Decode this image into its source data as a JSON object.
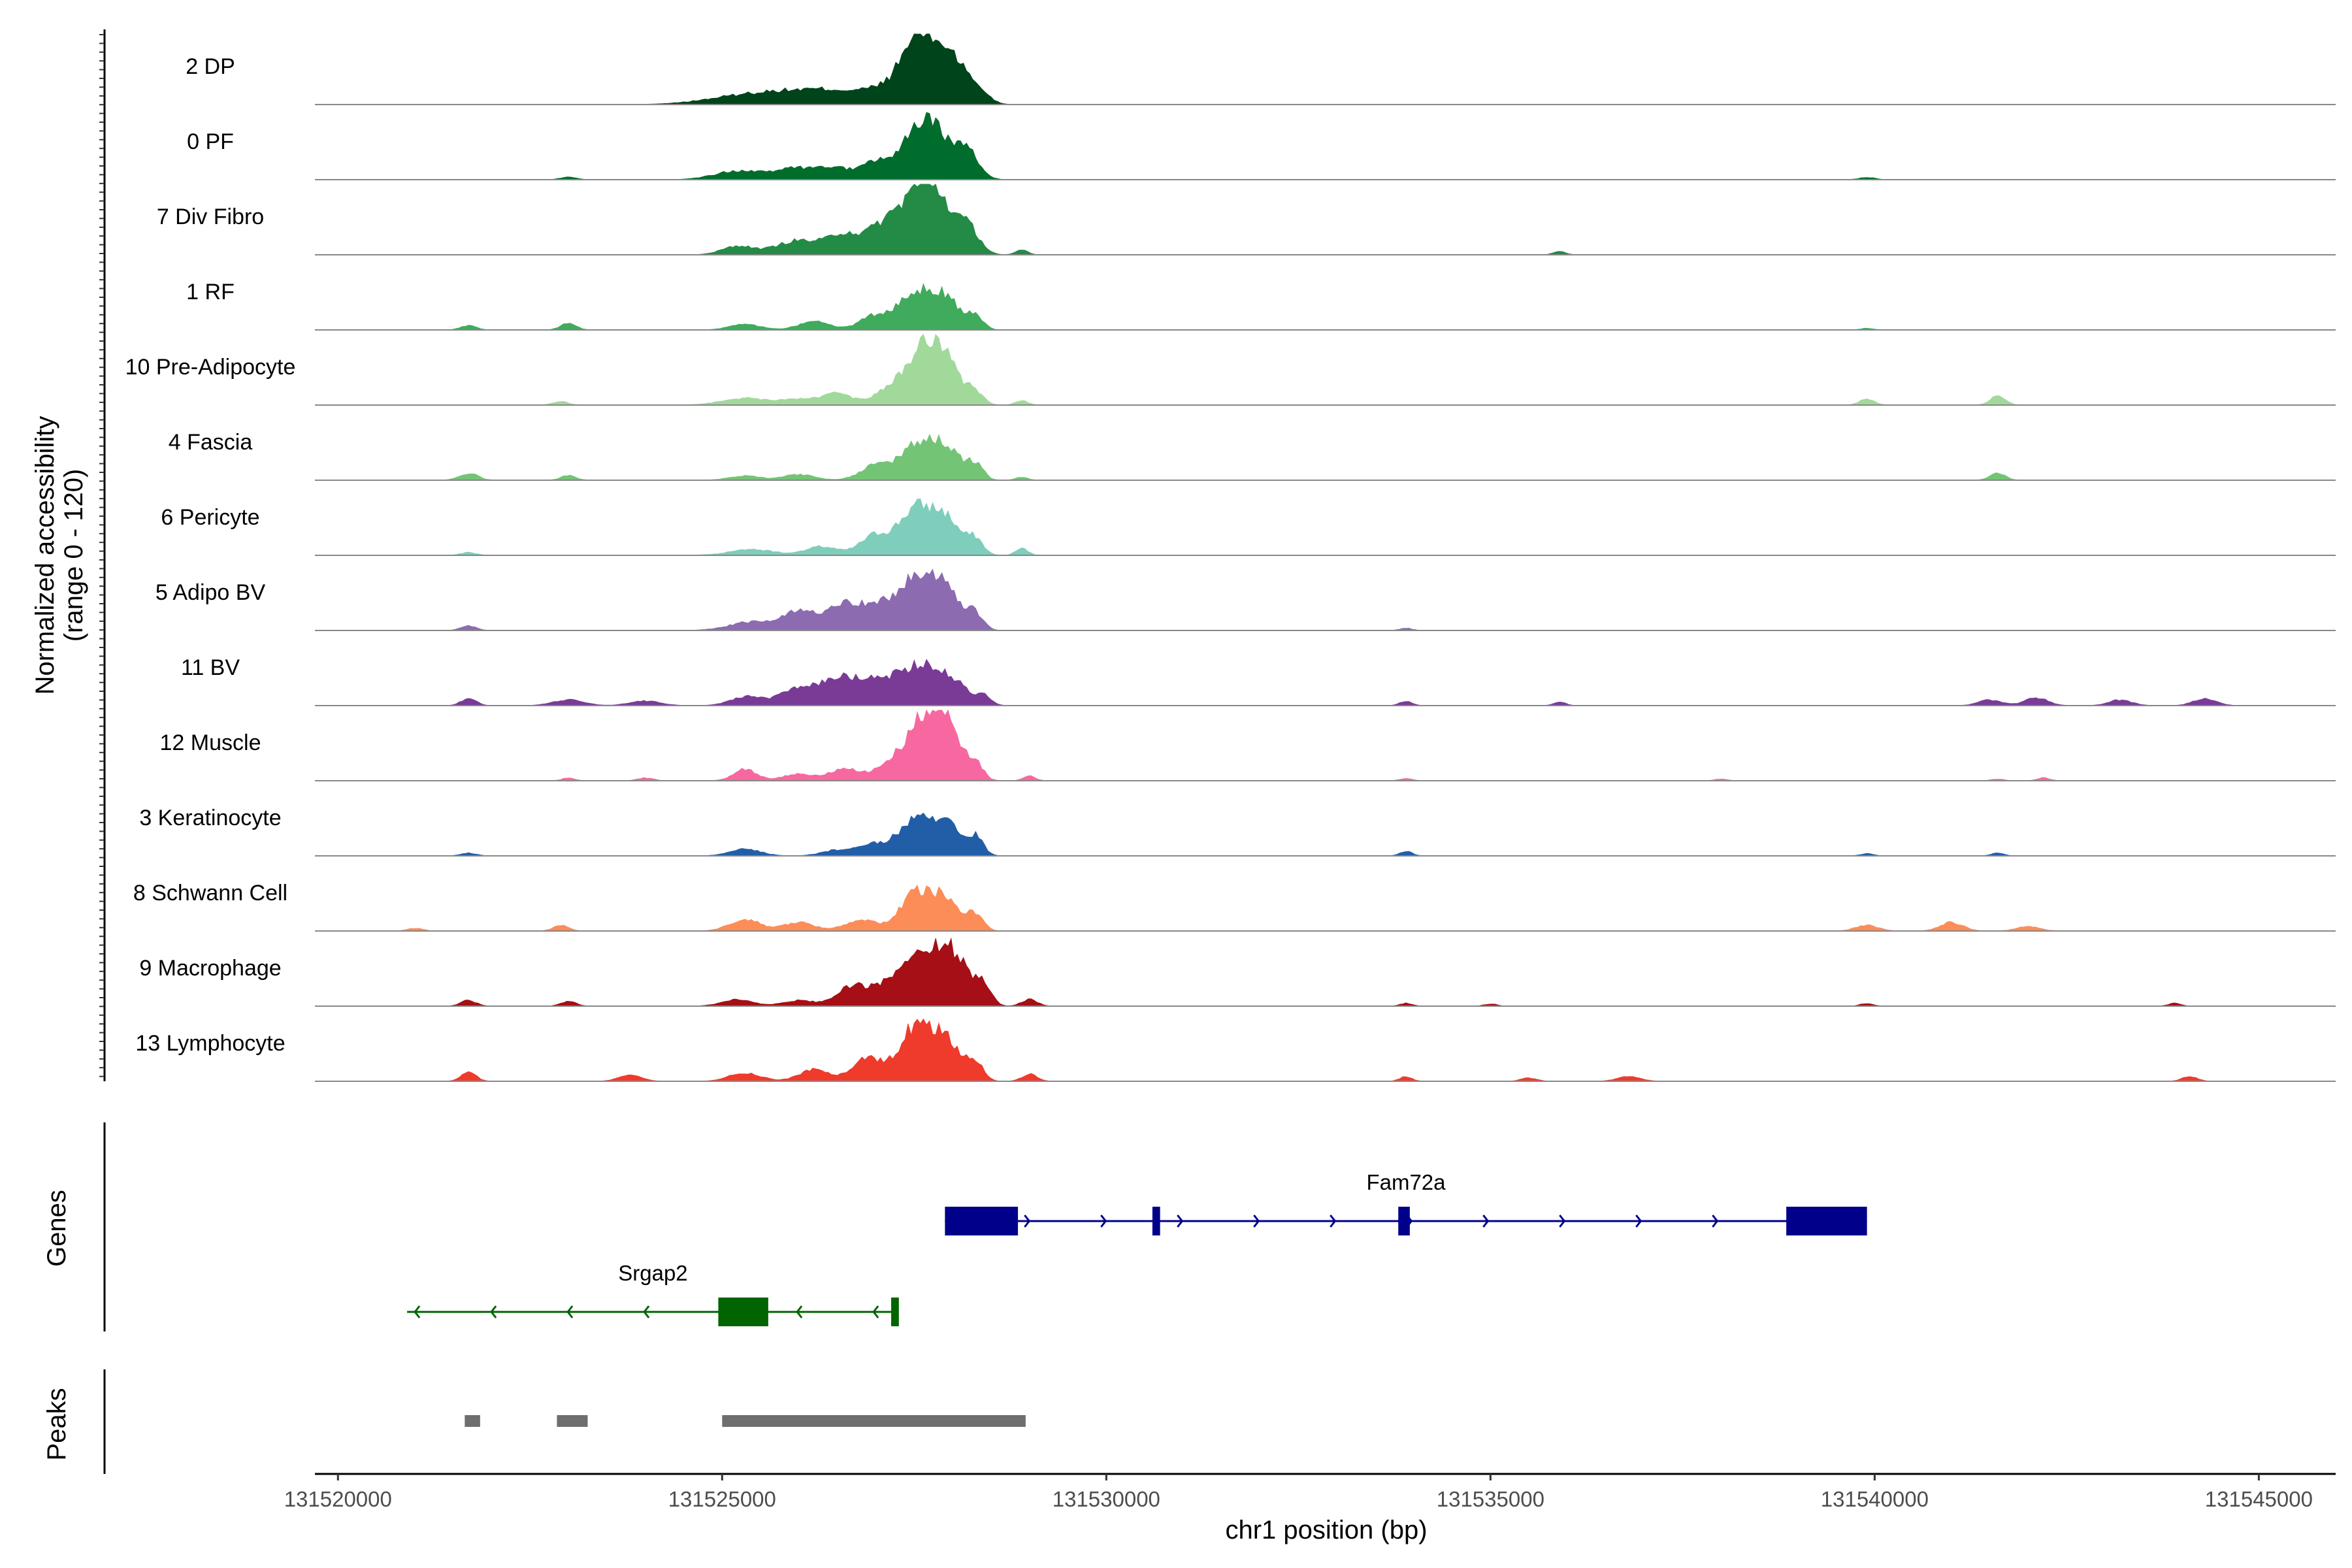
{
  "chart_data": {
    "type": "area",
    "title": "",
    "coverage_ylabel": "Normalized accessibility\n(range 0 - 120)",
    "xlabel": "chr1 position (bp)",
    "xlim": [
      131519700,
      131546000
    ],
    "ylim": [
      0,
      120
    ],
    "x_ticks": [
      131520000,
      131525000,
      131530000,
      131535000,
      131540000,
      131545000
    ],
    "x_tick_labels": [
      "131520000",
      "131525000",
      "131530000",
      "131535000",
      "131540000",
      "131545000"
    ],
    "baseline_start": 131519700,
    "series": [
      {
        "name": "2 DP",
        "color": "#00441b",
        "peaks": [
          [
            131525300,
            15,
            500
          ],
          [
            131525900,
            12,
            400
          ],
          [
            131526500,
            20,
            400
          ],
          [
            131527200,
            25,
            300
          ],
          [
            131527500,
            62,
            200
          ],
          [
            131527700,
            70,
            200
          ],
          [
            131528000,
            65,
            150
          ],
          [
            131528300,
            30,
            150
          ]
        ]
      },
      {
        "name": "0 PF",
        "color": "#006d2c",
        "peaks": [
          [
            131523000,
            5,
            100
          ],
          [
            131525200,
            15,
            300
          ],
          [
            131526000,
            20,
            300
          ],
          [
            131526500,
            15,
            200
          ],
          [
            131527000,
            30,
            200
          ],
          [
            131527500,
            65,
            200
          ],
          [
            131527800,
            70,
            200
          ],
          [
            131528200,
            45,
            150
          ],
          [
            131539900,
            4,
            100
          ]
        ]
      },
      {
        "name": "7 Div Fibro",
        "color": "#238b45",
        "peaks": [
          [
            131525200,
            15,
            200
          ],
          [
            131526000,
            25,
            300
          ],
          [
            131526600,
            35,
            200
          ],
          [
            131527100,
            50,
            200
          ],
          [
            131527500,
            85,
            200
          ],
          [
            131527800,
            90,
            200
          ],
          [
            131528200,
            45,
            150
          ],
          [
            131528900,
            8,
            80
          ],
          [
            131535900,
            6,
            80
          ]
        ]
      },
      {
        "name": "1 RF",
        "color": "#41ab5d",
        "peaks": [
          [
            131521700,
            8,
            100
          ],
          [
            131523000,
            12,
            100
          ],
          [
            131525300,
            10,
            200
          ],
          [
            131526200,
            15,
            200
          ],
          [
            131527000,
            25,
            200
          ],
          [
            131527500,
            60,
            200
          ],
          [
            131527900,
            55,
            200
          ],
          [
            131528300,
            20,
            100
          ],
          [
            131539900,
            3,
            80
          ]
        ]
      },
      {
        "name": "10 Pre-Adipocyte",
        "color": "#a1d99b",
        "peaks": [
          [
            131522900,
            6,
            100
          ],
          [
            131525300,
            12,
            300
          ],
          [
            131526000,
            10,
            200
          ],
          [
            131526500,
            20,
            200
          ],
          [
            131527200,
            30,
            200
          ],
          [
            131527600,
            85,
            200
          ],
          [
            131527900,
            70,
            200
          ],
          [
            131528300,
            20,
            100
          ],
          [
            131528900,
            8,
            80
          ],
          [
            131539900,
            10,
            100
          ],
          [
            131541600,
            15,
            100
          ]
        ]
      },
      {
        "name": "4 Fascia",
        "color": "#74c476",
        "peaks": [
          [
            131521700,
            12,
            120
          ],
          [
            131523000,
            8,
            100
          ],
          [
            131525300,
            8,
            200
          ],
          [
            131526000,
            10,
            200
          ],
          [
            131527000,
            25,
            200
          ],
          [
            131527500,
            55,
            200
          ],
          [
            131527900,
            60,
            200
          ],
          [
            131528300,
            25,
            100
          ],
          [
            131528900,
            5,
            80
          ],
          [
            131541600,
            12,
            100
          ]
        ]
      },
      {
        "name": "6 Pericyte",
        "color": "#7fcdbb",
        "peaks": [
          [
            131521700,
            5,
            100
          ],
          [
            131525400,
            10,
            300
          ],
          [
            131526300,
            15,
            200
          ],
          [
            131527000,
            35,
            200
          ],
          [
            131527500,
            75,
            200
          ],
          [
            131527900,
            65,
            200
          ],
          [
            131528300,
            25,
            100
          ],
          [
            131528900,
            12,
            80
          ]
        ]
      },
      {
        "name": "5 Adipo BV",
        "color": "#8c6bb1",
        "peaks": [
          [
            131521700,
            8,
            100
          ],
          [
            131525400,
            15,
            300
          ],
          [
            131526000,
            30,
            200
          ],
          [
            131526600,
            50,
            250
          ],
          [
            131527100,
            35,
            200
          ],
          [
            131527500,
            80,
            200
          ],
          [
            131527900,
            75,
            200
          ],
          [
            131528300,
            25,
            100
          ],
          [
            131533900,
            4,
            80
          ]
        ]
      },
      {
        "name": "11 BV",
        "color": "#7a3b96",
        "peaks": [
          [
            131521700,
            12,
            100
          ],
          [
            131523000,
            10,
            200
          ],
          [
            131524000,
            8,
            200
          ],
          [
            131525300,
            15,
            200
          ],
          [
            131526100,
            35,
            300
          ],
          [
            131526700,
            45,
            250
          ],
          [
            131527200,
            40,
            200
          ],
          [
            131527600,
            65,
            200
          ],
          [
            131528000,
            40,
            200
          ],
          [
            131528400,
            15,
            100
          ],
          [
            131533900,
            8,
            80
          ],
          [
            131535900,
            6,
            80
          ],
          [
            131541500,
            10,
            150
          ],
          [
            131542100,
            14,
            150
          ],
          [
            131543200,
            10,
            150
          ],
          [
            131544300,
            12,
            150
          ]
        ]
      },
      {
        "name": "12 Muscle",
        "color": "#f768a1",
        "peaks": [
          [
            131523000,
            5,
            80
          ],
          [
            131524000,
            5,
            100
          ],
          [
            131525300,
            20,
            150
          ],
          [
            131526000,
            12,
            200
          ],
          [
            131526600,
            20,
            200
          ],
          [
            131527200,
            30,
            200
          ],
          [
            131527600,
            85,
            200
          ],
          [
            131527900,
            95,
            200
          ],
          [
            131528300,
            25,
            100
          ],
          [
            131529000,
            8,
            80
          ],
          [
            131533900,
            4,
            80
          ],
          [
            131538000,
            3,
            80
          ],
          [
            131541600,
            3,
            80
          ],
          [
            131542200,
            5,
            80
          ]
        ]
      },
      {
        "name": "3 Keratinocyte",
        "color": "#225ea8",
        "peaks": [
          [
            131521700,
            5,
            100
          ],
          [
            131525300,
            12,
            200
          ],
          [
            131526500,
            10,
            200
          ],
          [
            131527000,
            20,
            200
          ],
          [
            131527500,
            60,
            200
          ],
          [
            131527900,
            55,
            200
          ],
          [
            131528300,
            30,
            100
          ],
          [
            131533900,
            8,
            80
          ],
          [
            131539900,
            4,
            80
          ],
          [
            131541600,
            5,
            80
          ]
        ]
      },
      {
        "name": "8 Schwann Cell",
        "color": "#fc8d59",
        "peaks": [
          [
            131521000,
            5,
            100
          ],
          [
            131522900,
            10,
            100
          ],
          [
            131525300,
            20,
            200
          ],
          [
            131526000,
            15,
            200
          ],
          [
            131526800,
            20,
            200
          ],
          [
            131527500,
            60,
            200
          ],
          [
            131527900,
            55,
            200
          ],
          [
            131528300,
            25,
            100
          ],
          [
            131539900,
            10,
            150
          ],
          [
            131541000,
            15,
            150
          ],
          [
            131542000,
            8,
            150
          ]
        ]
      },
      {
        "name": "9 Macrophage",
        "color": "#a50f15",
        "peaks": [
          [
            131521700,
            10,
            100
          ],
          [
            131523000,
            8,
            100
          ],
          [
            131525200,
            12,
            200
          ],
          [
            131526000,
            10,
            200
          ],
          [
            131526700,
            35,
            200
          ],
          [
            131527200,
            40,
            200
          ],
          [
            131527600,
            80,
            200
          ],
          [
            131528000,
            90,
            200
          ],
          [
            131528400,
            35,
            100
          ],
          [
            131529000,
            12,
            100
          ],
          [
            131533900,
            5,
            80
          ],
          [
            131535000,
            4,
            80
          ],
          [
            131539900,
            5,
            80
          ],
          [
            131543900,
            5,
            80
          ]
        ]
      },
      {
        "name": "13 Lymphocyte",
        "color": "#ef3b2c",
        "peaks": [
          [
            131521700,
            15,
            100
          ],
          [
            131523800,
            10,
            150
          ],
          [
            131525300,
            15,
            200
          ],
          [
            131526200,
            20,
            200
          ],
          [
            131526900,
            40,
            200
          ],
          [
            131527500,
            90,
            200
          ],
          [
            131527900,
            70,
            200
          ],
          [
            131528300,
            30,
            100
          ],
          [
            131529000,
            12,
            100
          ],
          [
            131533900,
            8,
            80
          ],
          [
            131535500,
            6,
            100
          ],
          [
            131536800,
            8,
            150
          ],
          [
            131544100,
            8,
            100
          ]
        ]
      }
    ],
    "genes_ylabel": "Genes",
    "genes": [
      {
        "name": "Fam72a",
        "strand": "+",
        "color": "#00008b",
        "start": 131527900,
        "end": 131539900,
        "exons": [
          [
            131527900,
            131528850
          ],
          [
            131530600,
            131530700
          ],
          [
            131533800,
            131533950
          ],
          [
            131538850,
            131539900
          ]
        ]
      },
      {
        "name": "Srgap2",
        "strand": "-",
        "color": "#006400",
        "start": 131520900,
        "end": 131527300,
        "exons": [
          [
            131524950,
            131525600
          ],
          [
            131527200,
            131527300
          ]
        ]
      }
    ],
    "peaks_ylabel": "Peaks",
    "peaks": [
      [
        131521650,
        131521850
      ],
      [
        131522850,
        131523250
      ],
      [
        131525000,
        131528950
      ]
    ]
  }
}
